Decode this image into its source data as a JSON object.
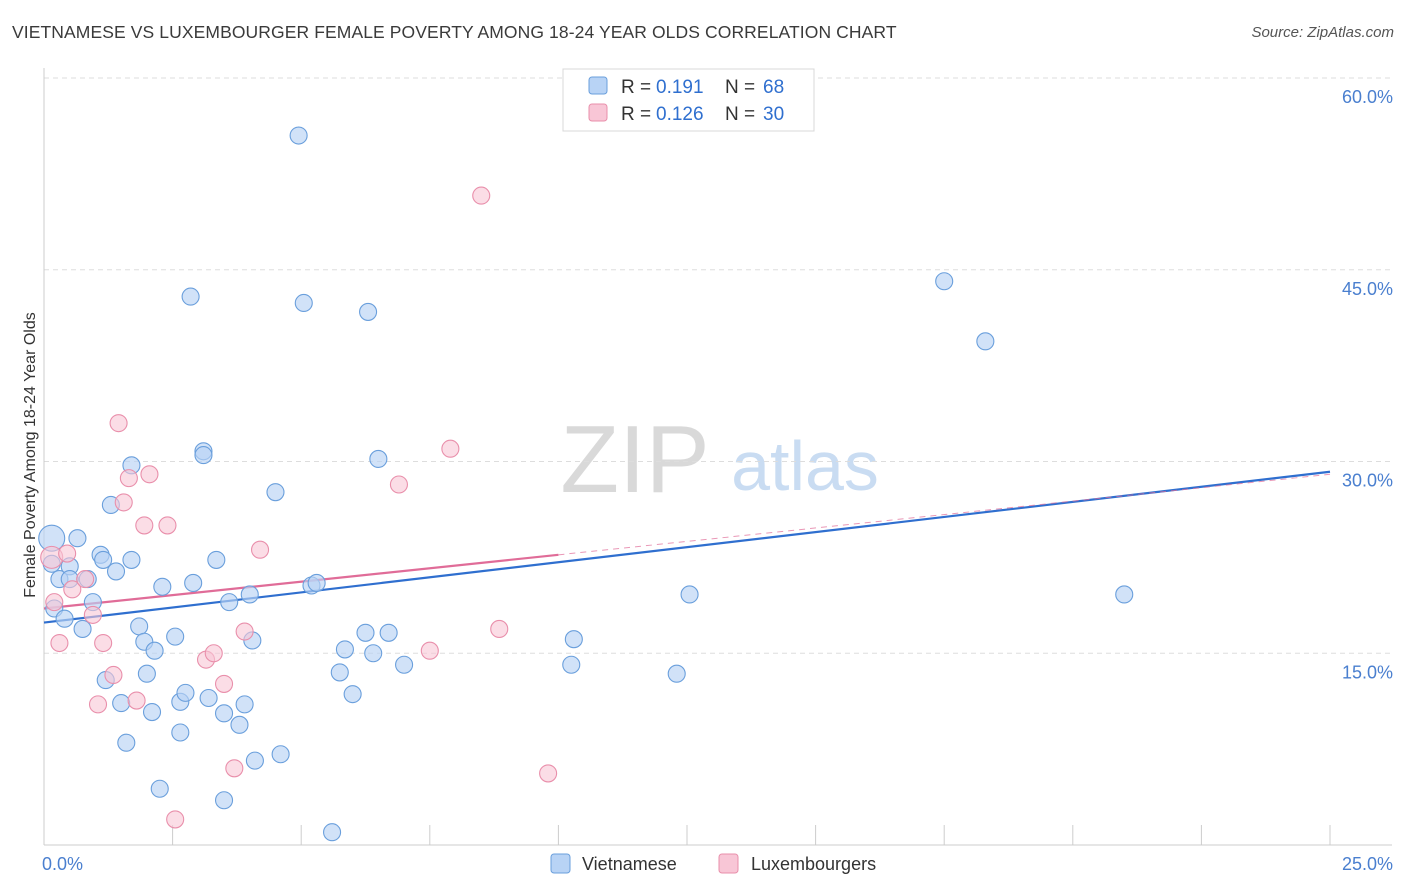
{
  "header": {
    "title": "VIETNAMESE VS LUXEMBOURGER FEMALE POVERTY AMONG 18-24 YEAR OLDS CORRELATION CHART",
    "source": "Source: ZipAtlas.com"
  },
  "watermark": {
    "zip": "ZIP",
    "atlas": "atlas"
  },
  "colors": {
    "blue_fill": "#b8d3f5",
    "blue_stroke": "#6a9fdc",
    "blue_line": "#2f6fcf",
    "pink_fill": "#f8c6d6",
    "pink_stroke": "#e98fab",
    "pink_line": "#e06c98",
    "tick_label": "#4a7fcf",
    "grid": "#dddddd",
    "axis_title": "#333333"
  },
  "legend": {
    "rows": [
      {
        "r_label": "R = ",
        "r_value": "0.191",
        "n_label": "N = ",
        "n_value": "68"
      },
      {
        "r_label": "R = ",
        "r_value": "0.126",
        "n_label": "N = ",
        "n_value": "30"
      }
    ]
  },
  "chart_data": {
    "type": "scatter",
    "title": "VIETNAMESE VS LUXEMBOURGER FEMALE POVERTY AMONG 18-24 YEAR OLDS CORRELATION CHART",
    "xlabel": "",
    "ylabel": "Female Poverty Among 18-24 Year Olds",
    "xlim": [
      0,
      25
    ],
    "ylim": [
      0,
      60
    ],
    "x_tick_labels": [
      {
        "value": 0,
        "label": "0.0%"
      },
      {
        "value": 25,
        "label": "25.0%"
      }
    ],
    "y_tick_labels": [
      {
        "value": 15,
        "label": "15.0%"
      },
      {
        "value": 30,
        "label": "30.0%"
      },
      {
        "value": 45,
        "label": "45.0%"
      },
      {
        "value": 60,
        "label": "60.0%"
      }
    ],
    "grid": true,
    "legend_position": "bottom",
    "series": [
      {
        "name": "Vietnamese",
        "color": "#b8d3f5",
        "trend": {
          "x0": 0,
          "y0": 17.4,
          "x1": 25,
          "y1": 29.2
        },
        "points": [
          [
            0.15,
            24.0
          ],
          [
            0.15,
            22.0
          ],
          [
            0.2,
            18.5
          ],
          [
            0.3,
            20.8
          ],
          [
            0.4,
            17.7
          ],
          [
            0.5,
            21.8
          ],
          [
            0.5,
            20.8
          ],
          [
            0.65,
            24.0
          ],
          [
            0.75,
            16.9
          ],
          [
            0.85,
            20.8
          ],
          [
            0.95,
            19.0
          ],
          [
            1.1,
            22.7
          ],
          [
            1.15,
            22.3
          ],
          [
            1.2,
            12.9
          ],
          [
            1.3,
            26.6
          ],
          [
            1.4,
            21.4
          ],
          [
            1.5,
            11.1
          ],
          [
            1.6,
            8.0
          ],
          [
            1.7,
            22.3
          ],
          [
            1.7,
            29.7
          ],
          [
            1.85,
            17.1
          ],
          [
            1.95,
            15.9
          ],
          [
            2.0,
            13.4
          ],
          [
            2.1,
            10.4
          ],
          [
            2.15,
            15.2
          ],
          [
            2.25,
            4.4
          ],
          [
            2.3,
            20.2
          ],
          [
            2.55,
            16.3
          ],
          [
            2.65,
            8.8
          ],
          [
            2.65,
            11.2
          ],
          [
            2.75,
            11.9
          ],
          [
            2.85,
            42.9
          ],
          [
            2.9,
            20.5
          ],
          [
            3.1,
            30.8
          ],
          [
            3.1,
            30.5
          ],
          [
            3.2,
            11.5
          ],
          [
            3.35,
            22.3
          ],
          [
            3.5,
            3.5
          ],
          [
            3.5,
            10.3
          ],
          [
            3.6,
            19.0
          ],
          [
            3.8,
            9.4
          ],
          [
            3.9,
            11.0
          ],
          [
            4.0,
            19.6
          ],
          [
            4.05,
            16.0
          ],
          [
            4.1,
            6.6
          ],
          [
            4.5,
            27.6
          ],
          [
            4.6,
            7.1
          ],
          [
            4.95,
            55.5
          ],
          [
            5.05,
            42.4
          ],
          [
            5.2,
            20.3
          ],
          [
            5.3,
            20.5
          ],
          [
            5.6,
            1.0
          ],
          [
            5.75,
            13.5
          ],
          [
            5.85,
            15.3
          ],
          [
            6.0,
            11.8
          ],
          [
            6.25,
            16.6
          ],
          [
            6.3,
            41.7
          ],
          [
            6.4,
            15.0
          ],
          [
            6.5,
            30.2
          ],
          [
            6.7,
            16.6
          ],
          [
            7.0,
            14.1
          ],
          [
            10.25,
            14.1
          ],
          [
            10.3,
            16.1
          ],
          [
            12.3,
            13.4
          ],
          [
            12.55,
            19.6
          ],
          [
            17.5,
            44.1
          ],
          [
            18.3,
            39.4
          ],
          [
            21.0,
            19.6
          ]
        ]
      },
      {
        "name": "Luxembourgers",
        "color": "#f8c6d6",
        "trend": {
          "x0": 0,
          "y0": 18.5,
          "x1": 10,
          "y1": 22.7,
          "dashed_to_x": 25,
          "dashed_to_y": 29.0
        },
        "points": [
          [
            0.15,
            22.5
          ],
          [
            0.2,
            19.0
          ],
          [
            0.3,
            15.8
          ],
          [
            0.45,
            22.8
          ],
          [
            0.55,
            20.0
          ],
          [
            0.8,
            20.8
          ],
          [
            0.95,
            18.0
          ],
          [
            1.05,
            11.0
          ],
          [
            1.15,
            15.8
          ],
          [
            1.35,
            13.3
          ],
          [
            1.45,
            33.0
          ],
          [
            1.55,
            26.8
          ],
          [
            1.65,
            28.7
          ],
          [
            1.8,
            11.3
          ],
          [
            1.95,
            25.0
          ],
          [
            2.05,
            29.0
          ],
          [
            2.4,
            25.0
          ],
          [
            2.55,
            2.0
          ],
          [
            3.15,
            14.5
          ],
          [
            3.3,
            15.0
          ],
          [
            3.5,
            12.6
          ],
          [
            3.7,
            6.0
          ],
          [
            3.9,
            16.7
          ],
          [
            4.2,
            23.1
          ],
          [
            6.9,
            28.2
          ],
          [
            7.5,
            15.2
          ],
          [
            7.9,
            31.0
          ],
          [
            8.5,
            50.8
          ],
          [
            8.85,
            16.9
          ],
          [
            9.8,
            5.6
          ]
        ]
      }
    ]
  }
}
